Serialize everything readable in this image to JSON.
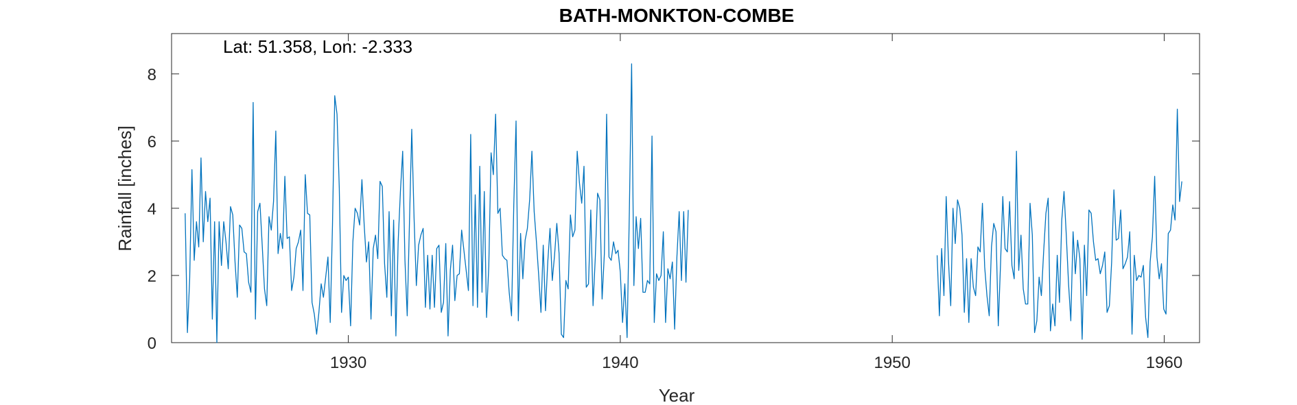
{
  "chart_data": {
    "type": "line",
    "title": "BATH-MONKTON-COMBE",
    "xlabel": "Year",
    "ylabel": "Rainfall [inches]",
    "annotation": "Lat: 51.358, Lon: -2.333",
    "xlim": [
      1923.5,
      1961.3
    ],
    "ylim": [
      0,
      9.2
    ],
    "xticks": [
      1930,
      1940,
      1950,
      1960
    ],
    "yticks": [
      0,
      2,
      4,
      6,
      8
    ],
    "grid": false,
    "box": true,
    "color": "#0072BD",
    "segments": [
      {
        "x_start": 1924.0,
        "x_step": 0.08333,
        "values": [
          3.85,
          0.3,
          1.9,
          5.15,
          2.45,
          3.6,
          2.85,
          5.5,
          3.0,
          4.5,
          3.6,
          4.3,
          0.7,
          3.6,
          0.0,
          3.6,
          2.3,
          3.6,
          3.0,
          2.2,
          4.05,
          3.8,
          2.4,
          1.35,
          3.5,
          3.4,
          2.7,
          2.65,
          1.8,
          1.5,
          7.15,
          0.7,
          3.9,
          4.15,
          2.9,
          1.6,
          1.1,
          3.75,
          3.35,
          4.2,
          6.3,
          2.65,
          3.25,
          2.8,
          4.95,
          3.1,
          3.15,
          1.55,
          1.95,
          2.8,
          3.0,
          3.35,
          1.55,
          5.0,
          3.85,
          3.8,
          1.2,
          0.85,
          0.25,
          0.9,
          1.75,
          1.35,
          1.95,
          2.55,
          0.6,
          3.5,
          7.35,
          6.8,
          4.6,
          0.9,
          2.0,
          1.85,
          1.95,
          0.5,
          3.0,
          4.0,
          3.85,
          3.5,
          4.85,
          3.5,
          2.4,
          3.0,
          0.7,
          2.8,
          3.2,
          2.5,
          4.8,
          4.65,
          2.35,
          1.35,
          3.9,
          0.8,
          3.65,
          0.2,
          3.0,
          4.5,
          5.7,
          2.45,
          0.8,
          3.6,
          6.35,
          3.7,
          1.7,
          2.9,
          3.2,
          3.4,
          1.05,
          2.6,
          1.0,
          2.6,
          1.05,
          2.8,
          2.9,
          0.9,
          1.2,
          2.95,
          0.2,
          2.15,
          2.9,
          1.25,
          2.0,
          2.05,
          3.35,
          2.75,
          2.15,
          1.55,
          6.2,
          1.1,
          4.4,
          1.05,
          5.25,
          1.5,
          4.5,
          0.75,
          2.3,
          5.65,
          5.0,
          6.8,
          3.85,
          4.0,
          2.6,
          2.5,
          2.45,
          1.5,
          0.8,
          4.1,
          6.6,
          0.65,
          3.25,
          1.9,
          3.05,
          3.4,
          4.25,
          5.7,
          3.9,
          3.0,
          2.0,
          0.9,
          2.9,
          0.95,
          2.4,
          3.4,
          1.85,
          2.6,
          3.55,
          2.65,
          0.25,
          0.15,
          1.85,
          1.6,
          3.8,
          3.15,
          3.35,
          5.7,
          4.75,
          4.15,
          5.25,
          1.65,
          1.75,
          3.95,
          1.1,
          2.55,
          4.45,
          4.25,
          1.3,
          2.65,
          6.8,
          2.55,
          2.45,
          3.0,
          2.65,
          2.75,
          2.1,
          0.6,
          1.75,
          0.15,
          3.9,
          8.3,
          1.7,
          3.75,
          2.8,
          3.7,
          1.5,
          1.5,
          1.85,
          1.75,
          6.15,
          0.6,
          2.05,
          1.85,
          2.0,
          3.3,
          0.6,
          2.2,
          1.9,
          2.4,
          0.4,
          2.55,
          3.9,
          1.85,
          3.9,
          1.8,
          3.95
        ]
      },
      {
        "x_start": 1951.65,
        "x_step": 0.08333,
        "values": [
          2.6,
          0.8,
          2.8,
          1.4,
          4.35,
          2.45,
          1.1,
          4.0,
          2.95,
          4.25,
          4.0,
          3.2,
          0.9,
          2.5,
          0.6,
          2.5,
          1.65,
          1.4,
          2.85,
          2.7,
          4.15,
          2.25,
          1.4,
          0.8,
          2.85,
          3.55,
          3.3,
          0.5,
          2.35,
          4.35,
          2.8,
          2.7,
          4.2,
          2.3,
          1.9,
          5.7,
          2.15,
          3.2,
          1.6,
          1.15,
          1.15,
          4.15,
          3.2,
          0.3,
          0.65,
          1.95,
          1.4,
          2.7,
          3.85,
          4.3,
          0.35,
          1.15,
          0.5,
          2.6,
          1.2,
          3.65,
          4.5,
          3.2,
          1.75,
          0.65,
          3.3,
          2.05,
          3.05,
          2.5,
          0.1,
          2.9,
          1.4,
          3.95,
          3.85,
          3.0,
          2.45,
          2.5,
          2.05,
          2.3,
          2.7,
          0.9,
          1.1,
          2.4,
          4.55,
          3.05,
          3.1,
          3.95,
          2.2,
          2.35,
          2.55,
          3.3,
          0.25,
          2.6,
          1.85,
          2.0,
          1.95,
          2.3,
          0.75,
          0.15,
          2.4,
          3.15,
          4.95,
          2.55,
          1.9,
          2.35,
          1.0,
          0.85,
          3.25,
          3.35,
          4.1,
          3.65,
          6.95,
          4.2,
          4.8
        ]
      }
    ]
  }
}
